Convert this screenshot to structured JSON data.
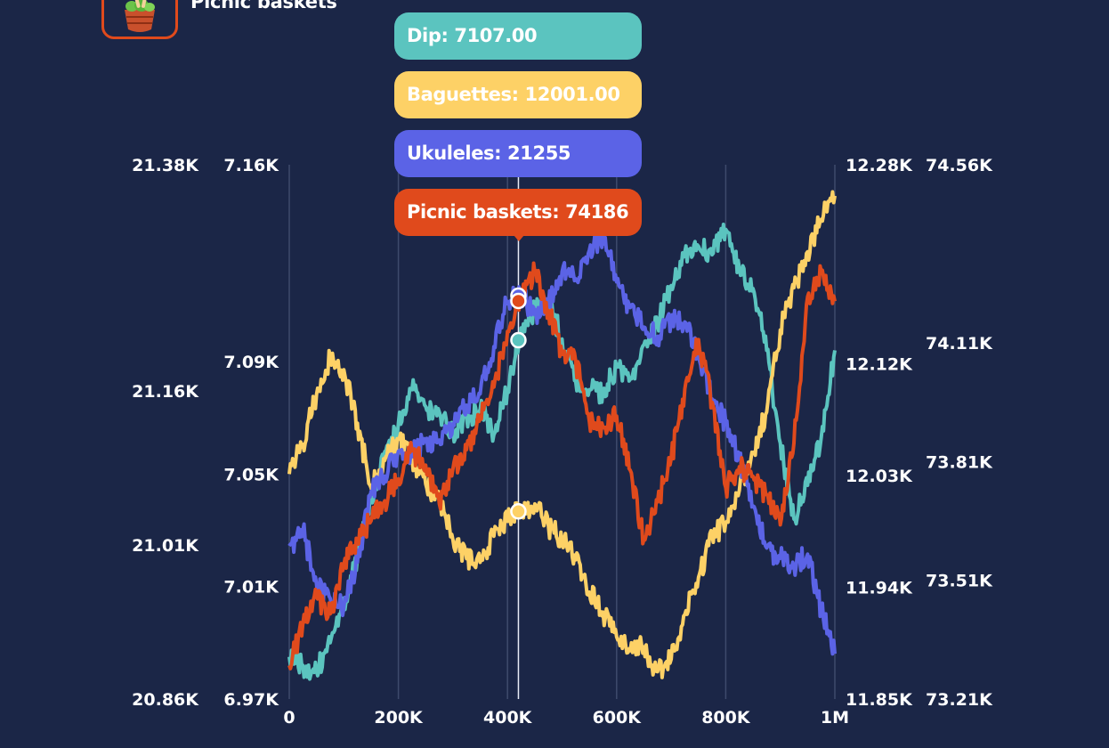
{
  "legend": {
    "title": "Picnic baskets",
    "icon": "picnic-basket-icon"
  },
  "tooltip": {
    "items": [
      {
        "text": "Dip: 7107.00",
        "color": "#5bc4bf"
      },
      {
        "text": "Baguettes: 12001.00",
        "color": "#fdd166"
      },
      {
        "text": "Ukuleles: 21255",
        "color": "#5b63e6"
      },
      {
        "text": "Picnic baskets: 74186",
        "color": "#e04a1c"
      }
    ]
  },
  "chart_data": {
    "type": "line",
    "grid": true,
    "background": "#1b2647",
    "x_axis": {
      "range": [
        0,
        1000000
      ],
      "ticks": [
        0,
        200000,
        400000,
        600000,
        800000,
        1000000
      ],
      "tick_labels": [
        "0",
        "200K",
        "400K",
        "600K",
        "800K",
        "1M"
      ]
    },
    "hover_x": 420000,
    "y_axes": [
      {
        "series": "Ukuleles",
        "side": "left-outer",
        "range": [
          20860,
          21380
        ],
        "ticks": [
          20860,
          21010,
          21160,
          21380
        ],
        "tick_labels": [
          "20.86K",
          "21.01K",
          "21.16K",
          "21.38K"
        ]
      },
      {
        "series": "Dip",
        "side": "left-inner",
        "range": [
          6970,
          7160
        ],
        "ticks": [
          6970,
          7010,
          7050,
          7090,
          7160
        ],
        "tick_labels": [
          "6.97K",
          "7.01K",
          "7.05K",
          "7.09K",
          "7.16K"
        ]
      },
      {
        "series": "Baguettes",
        "side": "right-inner",
        "range": [
          11850,
          12280
        ],
        "ticks": [
          11850,
          11940,
          12030,
          12120,
          12280
        ],
        "tick_labels": [
          "11.85K",
          "11.94K",
          "12.03K",
          "12.12K",
          "12.28K"
        ]
      },
      {
        "series": "Picnic baskets",
        "side": "right-outer",
        "range": [
          73210,
          74560
        ],
        "ticks": [
          73210,
          73510,
          73810,
          74110,
          74560
        ],
        "tick_labels": [
          "73.21K",
          "73.51K",
          "73.81K",
          "74.11K",
          "74.56K"
        ]
      }
    ],
    "series": [
      {
        "name": "Dip",
        "color": "#5bc4bf",
        "x": [
          0,
          25000,
          50000,
          75000,
          100000,
          125000,
          150000,
          175000,
          200000,
          225000,
          250000,
          275000,
          300000,
          325000,
          350000,
          375000,
          400000,
          425000,
          450000,
          475000,
          500000,
          525000,
          550000,
          575000,
          600000,
          625000,
          650000,
          675000,
          700000,
          725000,
          750000,
          775000,
          800000,
          825000,
          850000,
          875000,
          900000,
          925000,
          950000,
          975000,
          1000000
        ],
        "values": [
          6985,
          6982,
          6980,
          6990,
          7004,
          7020,
          7041,
          7058,
          7068,
          7080,
          7074,
          7072,
          7065,
          7070,
          7073,
          7064,
          7080,
          7102,
          7108,
          7111,
          7098,
          7083,
          7080,
          7079,
          7088,
          7084,
          7096,
          7103,
          7117,
          7129,
          7131,
          7128,
          7137,
          7123,
          7116,
          7094,
          7061,
          7034,
          7046,
          7063,
          7094
        ]
      },
      {
        "name": "Baguettes",
        "color": "#fdd166",
        "x": [
          0,
          25000,
          50000,
          75000,
          100000,
          125000,
          150000,
          175000,
          200000,
          225000,
          250000,
          275000,
          300000,
          325000,
          350000,
          375000,
          400000,
          425000,
          450000,
          475000,
          500000,
          525000,
          550000,
          575000,
          600000,
          625000,
          650000,
          675000,
          700000,
          725000,
          750000,
          775000,
          800000,
          825000,
          850000,
          875000,
          900000,
          925000,
          950000,
          975000,
          1000000
        ],
        "values": [
          12031,
          12055,
          12095,
          12125,
          12115,
          12072,
          12020,
          12042,
          12059,
          12045,
          12023,
          12012,
          11978,
          11963,
          11960,
          11981,
          11993,
          12003,
          12007,
          11989,
          11978,
          11962,
          11936,
          11920,
          11900,
          11889,
          11892,
          11872,
          11882,
          11918,
          11948,
          11981,
          11992,
          12018,
          12048,
          12081,
          12147,
          12181,
          12210,
          12236,
          12255
        ]
      },
      {
        "name": "Ukuleles",
        "color": "#5b63e6",
        "x": [
          0,
          25000,
          50000,
          75000,
          100000,
          125000,
          150000,
          175000,
          200000,
          225000,
          250000,
          275000,
          300000,
          325000,
          350000,
          375000,
          400000,
          425000,
          450000,
          475000,
          500000,
          525000,
          550000,
          575000,
          600000,
          625000,
          650000,
          675000,
          700000,
          725000,
          750000,
          775000,
          800000,
          825000,
          850000,
          875000,
          900000,
          925000,
          950000,
          975000,
          1000000
        ],
        "values": [
          21009,
          21024,
          20972,
          20958,
          20949,
          20993,
          21062,
          21077,
          21101,
          21098,
          21111,
          21112,
          21128,
          21146,
          21157,
          21203,
          21247,
          21254,
          21234,
          21245,
          21276,
          21269,
          21297,
          21312,
          21266,
          21241,
          21222,
          21213,
          21228,
          21227,
          21195,
          21152,
          21129,
          21094,
          21048,
          21007,
          20997,
          20989,
          21001,
          20947,
          20904
        ]
      },
      {
        "name": "Picnic baskets",
        "color": "#e04a1c",
        "x": [
          0,
          25000,
          50000,
          75000,
          100000,
          125000,
          150000,
          175000,
          200000,
          225000,
          250000,
          275000,
          300000,
          325000,
          350000,
          375000,
          400000,
          425000,
          450000,
          475000,
          500000,
          525000,
          550000,
          575000,
          600000,
          625000,
          650000,
          675000,
          700000,
          725000,
          750000,
          775000,
          800000,
          825000,
          850000,
          875000,
          900000,
          925000,
          950000,
          975000,
          1000000
        ],
        "values": [
          73295,
          73401,
          73468,
          73425,
          73548,
          73612,
          73660,
          73711,
          73766,
          73837,
          73801,
          73703,
          73792,
          73840,
          73919,
          73998,
          74139,
          74235,
          74288,
          74192,
          74081,
          74064,
          73910,
          73897,
          73925,
          73788,
          73613,
          73708,
          73817,
          73993,
          74118,
          73960,
          73744,
          73797,
          73773,
          73726,
          73650,
          73856,
          74227,
          74291,
          74215
        ]
      }
    ]
  }
}
